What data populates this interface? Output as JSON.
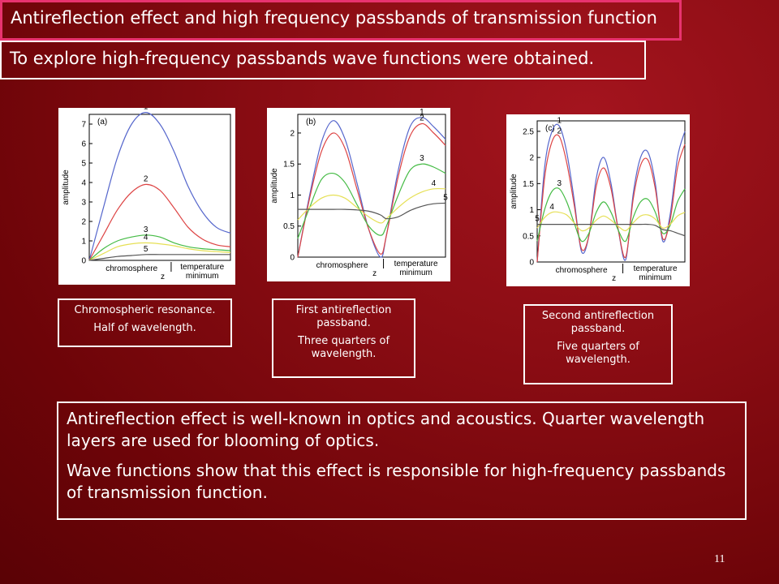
{
  "slide": {
    "title": "Antireflection effect and high frequency passbands of transmission function",
    "subtitle": "To explore high-frequency passbands wave functions were obtained.",
    "captions": [
      [
        "Chromospheric resonance.",
        "Half of wavelength."
      ],
      [
        "First antireflection passband.",
        "Three quarters of wavelength."
      ],
      [
        "Second antireflection passband.",
        "Five quarters of wavelength."
      ]
    ],
    "body": [
      "Antireflection effect is well-known in optics and acoustics. Quarter wavelength layers are used for blooming of optics.",
      "Wave functions show that this effect is responsible for high-frequency passbands of transmission function."
    ],
    "page_number": "11",
    "colors": {
      "background": "#7a0509",
      "title_border": "#e8336f",
      "series": [
        "#5566cc",
        "#dd4444",
        "#44bb44",
        "#e6e055",
        "#555555"
      ]
    }
  },
  "chart_data": [
    {
      "type": "line",
      "panel_label": "(a)",
      "ylabel": "amplitude",
      "xlabel": "z",
      "x_annotations": [
        "chromosphere",
        "temperature",
        "minimum"
      ],
      "ylim": [
        0,
        7.5
      ],
      "yticks": [
        "0",
        "1",
        "2",
        "3",
        "4",
        "5",
        "6",
        "7"
      ],
      "series": [
        {
          "name": "1",
          "x": [
            0,
            0.1,
            0.2,
            0.3,
            0.4,
            0.5,
            0.6,
            0.7,
            0.8,
            0.9,
            1.0
          ],
          "values": [
            0.0,
            2.7,
            5.3,
            7.0,
            7.6,
            7.0,
            5.6,
            3.8,
            2.5,
            1.7,
            1.4
          ]
        },
        {
          "name": "2",
          "x": [
            0,
            0.1,
            0.2,
            0.3,
            0.4,
            0.5,
            0.6,
            0.7,
            0.8,
            0.9,
            1.0
          ],
          "values": [
            0.0,
            1.3,
            2.6,
            3.5,
            3.9,
            3.6,
            2.7,
            1.7,
            1.1,
            0.8,
            0.7
          ]
        },
        {
          "name": "3",
          "x": [
            0,
            0.1,
            0.2,
            0.3,
            0.4,
            0.5,
            0.6,
            0.7,
            0.8,
            0.9,
            1.0
          ],
          "values": [
            0.0,
            0.6,
            1.0,
            1.2,
            1.3,
            1.2,
            0.9,
            0.7,
            0.6,
            0.55,
            0.5
          ]
        },
        {
          "name": "4",
          "x": [
            0,
            0.1,
            0.2,
            0.3,
            0.4,
            0.5,
            0.6,
            0.7,
            0.8,
            0.9,
            1.0
          ],
          "values": [
            0.0,
            0.35,
            0.7,
            0.85,
            0.9,
            0.85,
            0.75,
            0.6,
            0.5,
            0.45,
            0.4
          ]
        },
        {
          "name": "5",
          "x": [
            0,
            0.1,
            0.2,
            0.3,
            0.4,
            0.5,
            0.6,
            0.7,
            0.8,
            0.9,
            1.0
          ],
          "values": [
            0.0,
            0.1,
            0.2,
            0.25,
            0.3,
            0.3,
            0.3,
            0.3,
            0.3,
            0.3,
            0.3
          ]
        }
      ]
    },
    {
      "type": "line",
      "panel_label": "(b)",
      "ylabel": "amplitude",
      "xlabel": "z",
      "x_annotations": [
        "chromosphere",
        "temperature",
        "minimum"
      ],
      "ylim": [
        0,
        2.3
      ],
      "yticks": [
        "0",
        "0.5",
        "1",
        "1.5",
        "2"
      ],
      "series": [
        {
          "name": "1",
          "x": [
            0,
            0.08,
            0.16,
            0.24,
            0.32,
            0.4,
            0.48,
            0.56,
            0.6,
            0.68,
            0.76,
            0.84,
            0.92,
            1.0
          ],
          "values": [
            0.0,
            1.0,
            1.85,
            2.2,
            1.9,
            1.2,
            0.45,
            0.0,
            0.35,
            1.4,
            2.1,
            2.25,
            2.1,
            1.9
          ]
        },
        {
          "name": "2",
          "x": [
            0,
            0.08,
            0.16,
            0.24,
            0.32,
            0.4,
            0.48,
            0.56,
            0.6,
            0.68,
            0.76,
            0.84,
            0.92,
            1.0
          ],
          "values": [
            0.0,
            0.95,
            1.7,
            2.0,
            1.75,
            1.1,
            0.45,
            0.05,
            0.35,
            1.3,
            1.95,
            2.15,
            2.0,
            1.8
          ]
        },
        {
          "name": "3",
          "x": [
            0,
            0.08,
            0.16,
            0.24,
            0.32,
            0.4,
            0.48,
            0.56,
            0.6,
            0.68,
            0.76,
            0.84,
            0.92,
            1.0
          ],
          "values": [
            0.3,
            0.8,
            1.25,
            1.35,
            1.2,
            0.85,
            0.5,
            0.35,
            0.5,
            1.0,
            1.4,
            1.5,
            1.45,
            1.35
          ]
        },
        {
          "name": "4",
          "x": [
            0,
            0.08,
            0.16,
            0.24,
            0.32,
            0.4,
            0.48,
            0.56,
            0.6,
            0.68,
            0.76,
            0.84,
            0.92,
            1.0
          ],
          "values": [
            0.6,
            0.8,
            0.95,
            1.0,
            0.95,
            0.8,
            0.65,
            0.55,
            0.62,
            0.8,
            0.95,
            1.05,
            1.1,
            1.1
          ]
        },
        {
          "name": "5",
          "x": [
            0,
            0.08,
            0.16,
            0.24,
            0.32,
            0.4,
            0.48,
            0.56,
            0.6,
            0.68,
            0.76,
            0.84,
            0.92,
            1.0
          ],
          "values": [
            0.77,
            0.77,
            0.77,
            0.77,
            0.77,
            0.76,
            0.74,
            0.68,
            0.62,
            0.65,
            0.75,
            0.82,
            0.86,
            0.87
          ]
        }
      ]
    },
    {
      "type": "line",
      "panel_label": "(c)",
      "ylabel": "amplitude",
      "xlabel": "z",
      "x_annotations": [
        "chromosphere",
        "temperature",
        "minimum"
      ],
      "ylim": [
        0,
        2.7
      ],
      "yticks": [
        "0",
        "0.5",
        "1",
        "1.5",
        "2",
        "2.5"
      ],
      "series": [
        {
          "name": "1",
          "x": [
            0,
            0.05,
            0.1,
            0.15,
            0.2,
            0.25,
            0.3,
            0.35,
            0.4,
            0.45,
            0.5,
            0.55,
            0.6,
            0.65,
            0.7,
            0.75,
            0.8,
            0.85,
            0.9,
            0.95,
            1.0
          ],
          "values": [
            0.0,
            1.8,
            2.5,
            2.6,
            2.1,
            1.2,
            0.2,
            0.5,
            1.6,
            2.0,
            1.5,
            0.6,
            0.05,
            1.3,
            2.0,
            2.1,
            1.5,
            0.4,
            0.9,
            2.0,
            2.5
          ]
        },
        {
          "name": "2",
          "x": [
            0,
            0.05,
            0.1,
            0.15,
            0.2,
            0.25,
            0.3,
            0.35,
            0.4,
            0.45,
            0.5,
            0.55,
            0.6,
            0.65,
            0.7,
            0.75,
            0.8,
            0.85,
            0.9,
            0.95,
            1.0
          ],
          "values": [
            0.0,
            1.6,
            2.3,
            2.4,
            1.9,
            1.1,
            0.25,
            0.5,
            1.45,
            1.8,
            1.4,
            0.6,
            0.1,
            1.2,
            1.85,
            1.95,
            1.4,
            0.45,
            0.8,
            1.8,
            2.25
          ]
        },
        {
          "name": "3",
          "x": [
            0,
            0.05,
            0.1,
            0.15,
            0.2,
            0.25,
            0.3,
            0.35,
            0.4,
            0.45,
            0.5,
            0.55,
            0.6,
            0.65,
            0.7,
            0.75,
            0.8,
            0.85,
            0.9,
            0.95,
            1.0
          ],
          "values": [
            0.4,
            1.0,
            1.35,
            1.4,
            1.15,
            0.75,
            0.4,
            0.55,
            0.95,
            1.15,
            0.95,
            0.6,
            0.4,
            0.85,
            1.15,
            1.2,
            0.95,
            0.55,
            0.7,
            1.15,
            1.4
          ]
        },
        {
          "name": "4",
          "x": [
            0,
            0.05,
            0.1,
            0.15,
            0.2,
            0.25,
            0.3,
            0.35,
            0.4,
            0.45,
            0.5,
            0.55,
            0.6,
            0.65,
            0.7,
            0.75,
            0.8,
            0.85,
            0.9,
            0.95,
            1.0
          ],
          "values": [
            0.65,
            0.85,
            0.95,
            0.95,
            0.9,
            0.75,
            0.6,
            0.65,
            0.8,
            0.88,
            0.8,
            0.68,
            0.6,
            0.75,
            0.88,
            0.9,
            0.82,
            0.65,
            0.72,
            0.88,
            0.95
          ]
        },
        {
          "name": "5",
          "x": [
            0,
            0.05,
            0.1,
            0.15,
            0.2,
            0.25,
            0.3,
            0.35,
            0.4,
            0.45,
            0.5,
            0.55,
            0.6,
            0.65,
            0.7,
            0.75,
            0.8,
            0.85,
            0.9,
            0.95,
            1.0
          ],
          "values": [
            0.72,
            0.72,
            0.72,
            0.72,
            0.72,
            0.72,
            0.72,
            0.72,
            0.72,
            0.72,
            0.72,
            0.72,
            0.72,
            0.72,
            0.72,
            0.72,
            0.7,
            0.62,
            0.6,
            0.55,
            0.5
          ]
        }
      ]
    }
  ]
}
